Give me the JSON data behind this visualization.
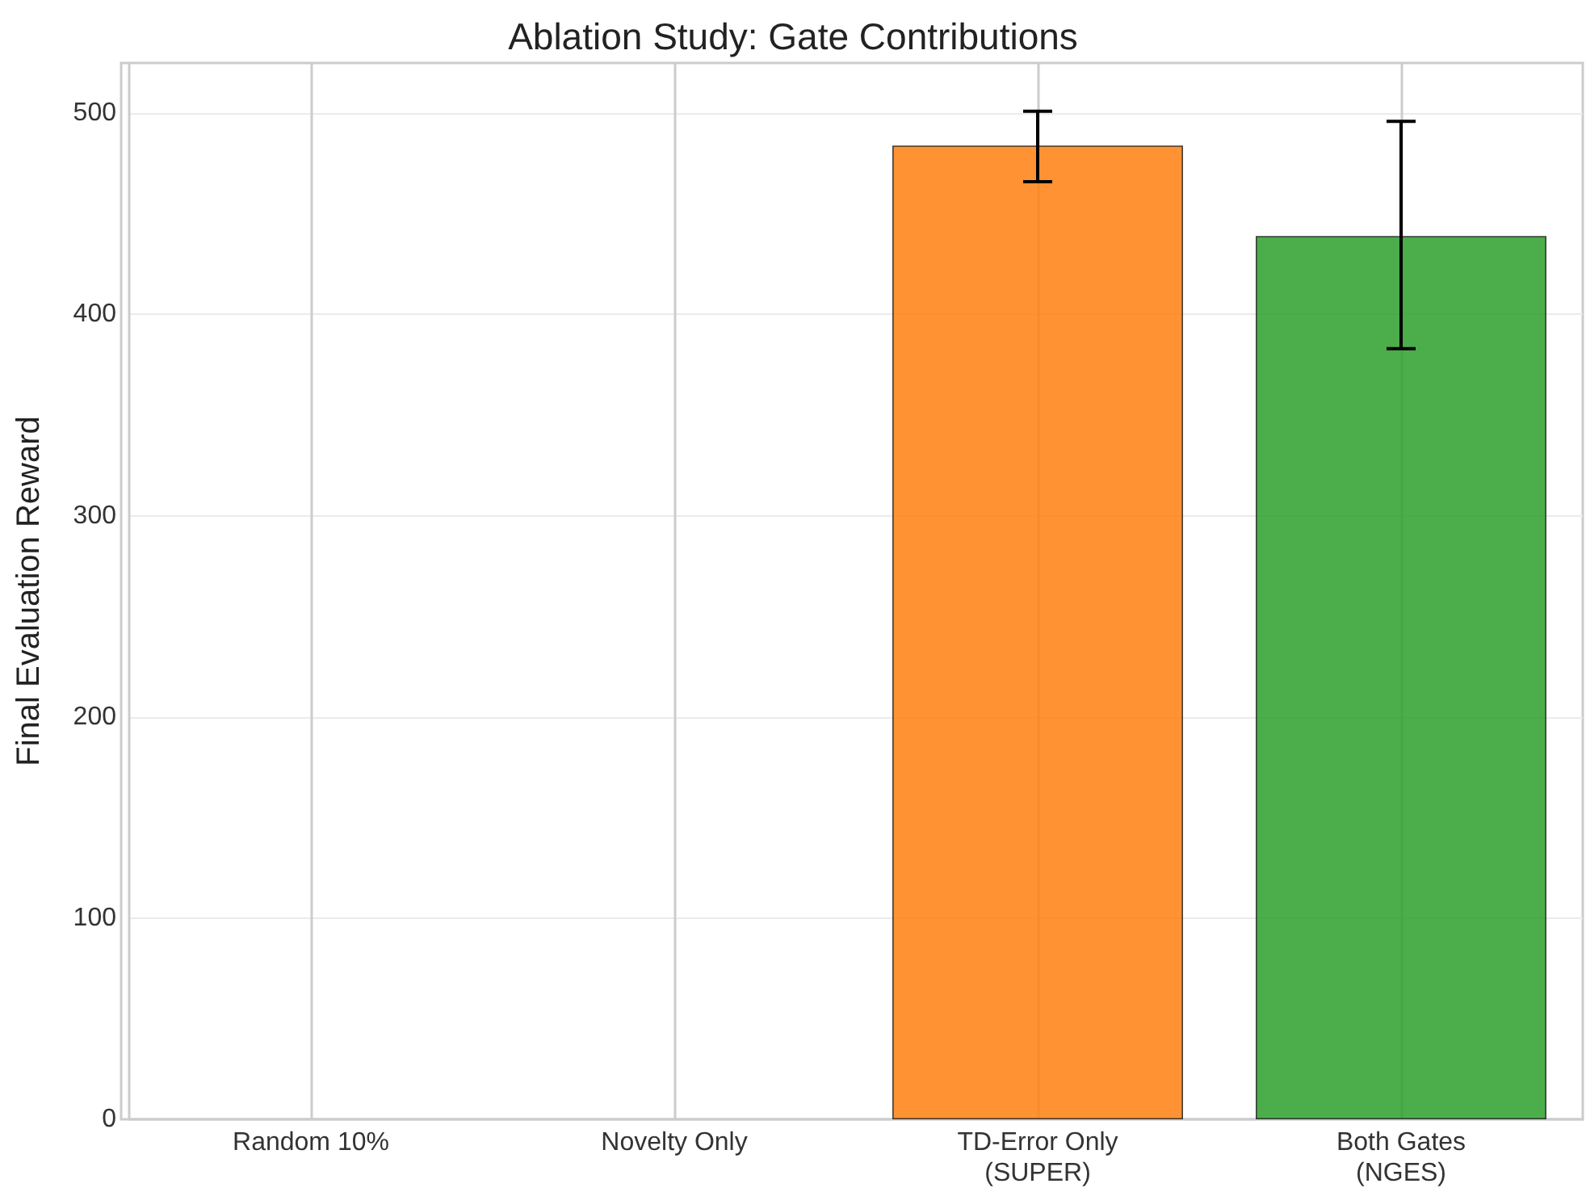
{
  "chart_data": {
    "type": "bar",
    "title": "Ablation Study: Gate Contributions",
    "ylabel": "Final Evaluation Reward",
    "categories": [
      "Random 10%",
      "Novelty Only",
      "TD-Error Only\n(SUPER)",
      "Both Gates\n(NGES)"
    ],
    "values": [
      0,
      0,
      484,
      439
    ],
    "colors": [
      "#1f77b4",
      "#d62728",
      "#ff7f0e",
      "#2ca02c"
    ],
    "errors": [
      null,
      null,
      [
        466,
        501
      ],
      [
        383,
        496
      ]
    ],
    "ylim": [
      0,
      525
    ],
    "yticks": [
      0,
      100,
      200,
      300,
      400,
      500
    ],
    "grid": true
  }
}
